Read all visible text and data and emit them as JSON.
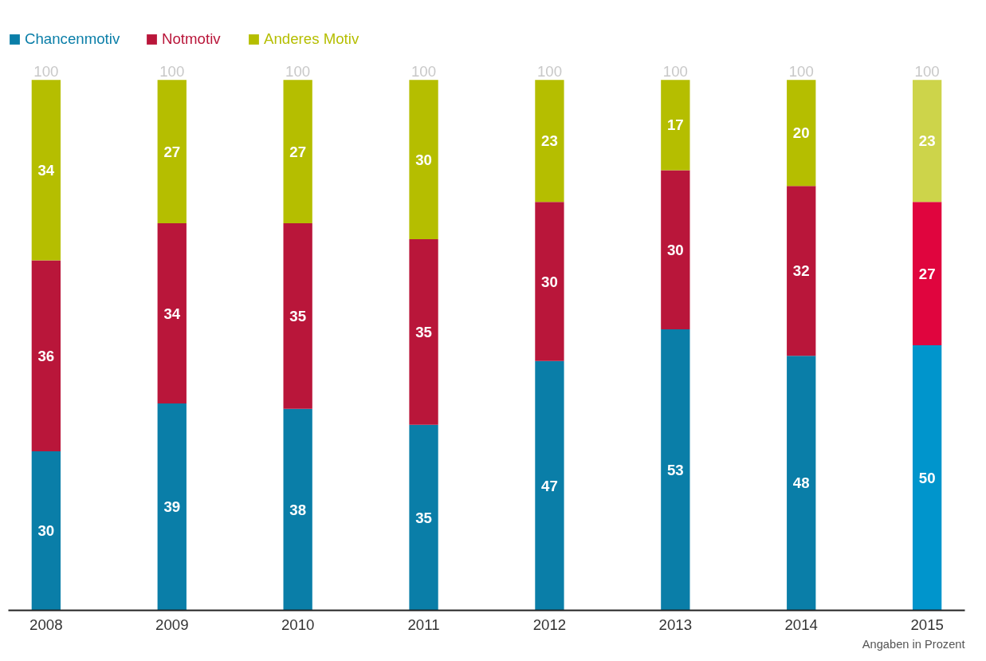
{
  "chart_data": {
    "type": "bar",
    "stacked": true,
    "data_labels": true,
    "legend": "top left",
    "grid": false,
    "categories": [
      "2008",
      "2009",
      "2010",
      "2011",
      "2012",
      "2013",
      "2014",
      "2015"
    ],
    "series": [
      {
        "name": "Chancenmotiv",
        "color": "#0a7ea8",
        "colors": [
          "#0a7ea8",
          "#0a7ea8",
          "#0a7ea8",
          "#0a7ea8",
          "#0a7ea8",
          "#0a7ea8",
          "#0a7ea8",
          "#0095cc"
        ],
        "values": [
          30,
          39,
          38,
          35,
          47,
          53,
          48,
          50
        ]
      },
      {
        "name": "Notmotiv",
        "color": "#b9163a",
        "colors": [
          "#b9163a",
          "#b9163a",
          "#b9163a",
          "#b9163a",
          "#b9163a",
          "#b9163a",
          "#b9163a",
          "#e0053e"
        ],
        "values": [
          36,
          34,
          35,
          35,
          30,
          30,
          32,
          27
        ]
      },
      {
        "name": "Anderes Motiv",
        "color": "#b5be00",
        "colors": [
          "#b5be00",
          "#b5be00",
          "#b5be00",
          "#b5be00",
          "#b5be00",
          "#b5be00",
          "#b5be00",
          "#cdd44a"
        ],
        "values": [
          34,
          27,
          27,
          30,
          23,
          17,
          20,
          23
        ]
      }
    ],
    "totals": [
      "100",
      "100",
      "100",
      "100",
      "100",
      "100",
      "100",
      "100"
    ],
    "annotations": [
      "Angaben in Prozent"
    ]
  }
}
